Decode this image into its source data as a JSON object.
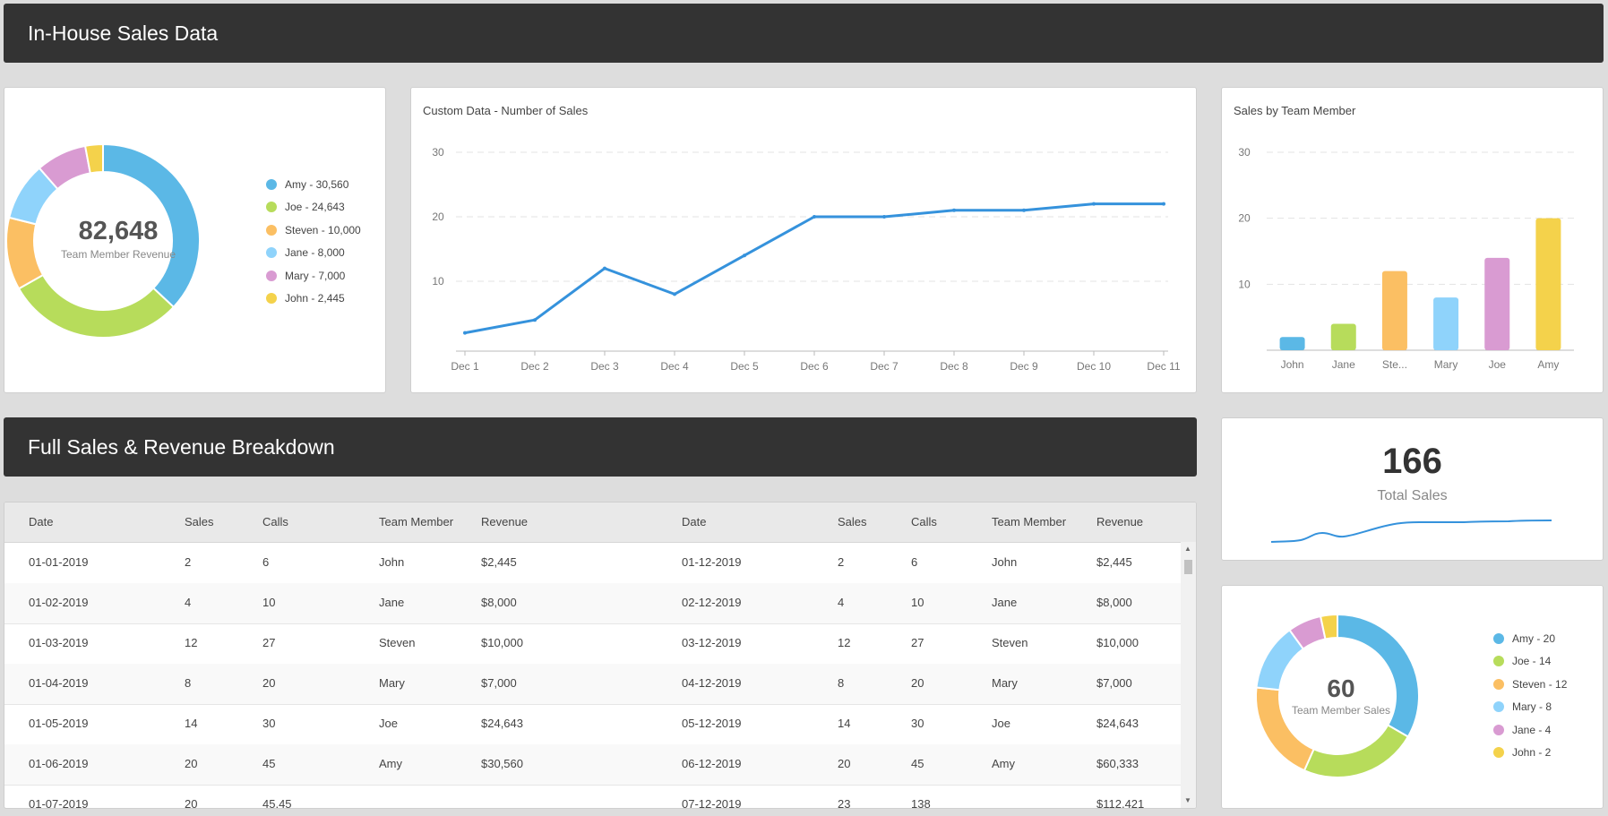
{
  "header": {
    "title": "In-House Sales Data"
  },
  "revenue_donut": {
    "center_value": "82,648",
    "center_label": "Team Member Revenue",
    "chart_data": {
      "type": "pie",
      "title": "",
      "slices": [
        {
          "name": "Amy",
          "value": 30560,
          "color": "#5bb8e6"
        },
        {
          "name": "Joe",
          "value": 24643,
          "color": "#b7dc5b"
        },
        {
          "name": "Steven",
          "value": 10000,
          "color": "#fbbf63"
        },
        {
          "name": "Jane",
          "value": 8000,
          "color": "#8fd3fb"
        },
        {
          "name": "Mary",
          "value": 7000,
          "color": "#d99bd2"
        },
        {
          "name": "John",
          "value": 2445,
          "color": "#f4d24b"
        }
      ]
    },
    "legend": [
      {
        "label": "Amy - 30,560",
        "color": "#5bb8e6"
      },
      {
        "label": "Joe - 24,643",
        "color": "#b7dc5b"
      },
      {
        "label": "Steven - 10,000",
        "color": "#fbbf63"
      },
      {
        "label": "Jane - 8,000",
        "color": "#8fd3fb"
      },
      {
        "label": "Mary - 7,000",
        "color": "#d99bd2"
      },
      {
        "label": "John - 2,445",
        "color": "#f4d24b"
      }
    ]
  },
  "line_chart": {
    "title": "Custom Data - Number of Sales",
    "chart_data": {
      "type": "line",
      "categories": [
        "Dec 1",
        "Dec 2",
        "Dec 3",
        "Dec 4",
        "Dec 5",
        "Dec 6",
        "Dec 7",
        "Dec 8",
        "Dec 9",
        "Dec 10",
        "Dec 11"
      ],
      "values": [
        2,
        4,
        12,
        8,
        14,
        20,
        20,
        21,
        21,
        22,
        22
      ],
      "ylim": [
        0,
        30
      ],
      "yticks": [
        10,
        20,
        30
      ],
      "color": "#3592dc",
      "grid": true
    }
  },
  "bar_chart": {
    "title": "Sales by Team Member",
    "chart_data": {
      "type": "bar",
      "categories": [
        "John",
        "Jane",
        "Ste...",
        "Mary",
        "Joe",
        "Amy"
      ],
      "values": [
        2,
        4,
        12,
        8,
        14,
        20
      ],
      "colors": [
        "#5bb8e6",
        "#b7dc5b",
        "#fbbf63",
        "#8fd3fb",
        "#d99bd2",
        "#f4d24b"
      ],
      "ylim": [
        0,
        30
      ],
      "yticks": [
        10,
        20,
        30
      ],
      "grid": true
    }
  },
  "breakdown": {
    "title": "Full Sales & Revenue Breakdown"
  },
  "table": {
    "columns": [
      "Date",
      "Sales",
      "Calls",
      "Team Member",
      "Revenue",
      "Date",
      "Sales",
      "Calls",
      "Team Member",
      "Revenue"
    ],
    "rows": [
      [
        "01-01-2019",
        "2",
        "6",
        "John",
        "$2,445",
        "01-12-2019",
        "2",
        "6",
        "John",
        "$2,445"
      ],
      [
        "01-02-2019",
        "4",
        "10",
        "Jane",
        "$8,000",
        "02-12-2019",
        "4",
        "10",
        "Jane",
        "$8,000"
      ],
      [
        "01-03-2019",
        "12",
        "27",
        "Steven",
        "$10,000",
        "03-12-2019",
        "12",
        "27",
        "Steven",
        "$10,000"
      ],
      [
        "01-04-2019",
        "8",
        "20",
        "Mary",
        "$7,000",
        "04-12-2019",
        "8",
        "20",
        "Mary",
        "$7,000"
      ],
      [
        "01-05-2019",
        "14",
        "30",
        "Joe",
        "$24,643",
        "05-12-2019",
        "14",
        "30",
        "Joe",
        "$24,643"
      ],
      [
        "01-06-2019",
        "20",
        "45",
        "Amy",
        "$30,560",
        "06-12-2019",
        "20",
        "45",
        "Amy",
        "$60,333"
      ],
      [
        "01-07-2019",
        "20",
        "45.45",
        "",
        "",
        "07-12-2019",
        "23",
        "138",
        "",
        "$112,421"
      ]
    ]
  },
  "total_sales": {
    "value": "166",
    "label": "Total Sales",
    "color": "#3592dc"
  },
  "sales_donut": {
    "center_value": "60",
    "center_label": "Team Member Sales",
    "chart_data": {
      "type": "pie",
      "title": "",
      "slices": [
        {
          "name": "Amy",
          "value": 20,
          "color": "#5bb8e6"
        },
        {
          "name": "Joe",
          "value": 14,
          "color": "#b7dc5b"
        },
        {
          "name": "Steven",
          "value": 12,
          "color": "#fbbf63"
        },
        {
          "name": "Mary",
          "value": 8,
          "color": "#8fd3fb"
        },
        {
          "name": "Jane",
          "value": 4,
          "color": "#d99bd2"
        },
        {
          "name": "John",
          "value": 2,
          "color": "#f4d24b"
        }
      ]
    },
    "legend": [
      {
        "label": "Amy - 20",
        "color": "#5bb8e6"
      },
      {
        "label": "Joe - 14",
        "color": "#b7dc5b"
      },
      {
        "label": "Steven - 12",
        "color": "#fbbf63"
      },
      {
        "label": "Mary - 8",
        "color": "#8fd3fb"
      },
      {
        "label": "Jane - 4",
        "color": "#d99bd2"
      },
      {
        "label": "John - 2",
        "color": "#f4d24b"
      }
    ]
  }
}
